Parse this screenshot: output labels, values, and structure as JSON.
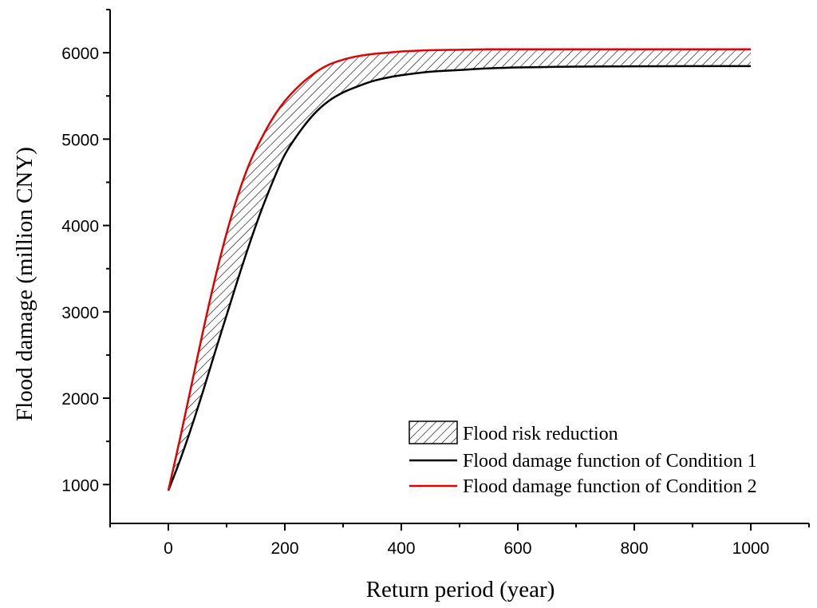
{
  "chart_data": {
    "type": "area",
    "title": "",
    "xlabel": "Return period (year)",
    "ylabel": "Flood damage (million CNY)",
    "xlim": [
      -100,
      1100
    ],
    "ylim": [
      550,
      6500
    ],
    "x_ticks": [
      0,
      200,
      400,
      600,
      800,
      1000
    ],
    "x_tick_labels": [
      "0",
      "200",
      "400",
      "600",
      "800",
      "1000"
    ],
    "x_minor_ticks": [
      -100,
      100,
      300,
      500,
      700,
      900,
      1100
    ],
    "y_ticks": [
      1000,
      2000,
      3000,
      4000,
      5000,
      6000
    ],
    "y_tick_labels": [
      "1000",
      "2000",
      "3000",
      "4000",
      "5000",
      "6000"
    ],
    "y_minor_ticks": [
      1500,
      2500,
      3500,
      4500,
      5500,
      6500
    ],
    "x": [
      0,
      20,
      40,
      60,
      80,
      100,
      120,
      140,
      160,
      180,
      200,
      225,
      250,
      275,
      300,
      325,
      350,
      375,
      400,
      450,
      500,
      550,
      600,
      650,
      700,
      800,
      900,
      1000
    ],
    "series": [
      {
        "name": "Flood damage function of Condition 1",
        "color": "#000000",
        "values": [
          930,
          1280,
          1670,
          2090,
          2530,
          2960,
          3390,
          3800,
          4180,
          4520,
          4820,
          5080,
          5290,
          5440,
          5540,
          5610,
          5670,
          5710,
          5740,
          5780,
          5800,
          5820,
          5830,
          5835,
          5840,
          5843,
          5845,
          5845
        ]
      },
      {
        "name": "Flood damage function of Condition 2",
        "color": "#e00000",
        "values": [
          930,
          1530,
          2160,
          2790,
          3380,
          3910,
          4360,
          4730,
          5010,
          5250,
          5440,
          5620,
          5760,
          5860,
          5920,
          5960,
          5985,
          6000,
          6015,
          6030,
          6035,
          6040,
          6040,
          6040,
          6040,
          6040,
          6040,
          6040
        ]
      }
    ],
    "fill_between": {
      "name": "Flood risk reduction",
      "pattern": "diagonal-hatch",
      "lower": "Flood damage function of Condition 1",
      "upper": "Flood damage function of Condition 2"
    },
    "legend": {
      "position": "lower-right",
      "entries": [
        "Flood risk reduction",
        "Flood damage function of Condition 1",
        "Flood damage function of Condition 2"
      ]
    },
    "grid": false
  }
}
